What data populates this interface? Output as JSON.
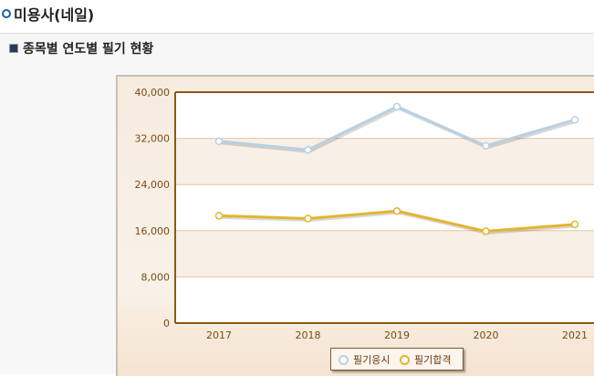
{
  "page": {
    "title": "미용사(네일)"
  },
  "section": {
    "title": "종목별 연도별 필기 현황"
  },
  "chart_data": {
    "type": "line",
    "categories": [
      "2017",
      "2018",
      "2019",
      "2020",
      "2021"
    ],
    "ylim": [
      0,
      40000
    ],
    "yticks": [
      "0",
      "8,000",
      "16,000",
      "24,000",
      "32,000",
      "40,000"
    ],
    "ytick_values": [
      0,
      8000,
      16000,
      24000,
      32000,
      40000
    ],
    "grid": true,
    "legend_position": "bottom",
    "series": [
      {
        "name": "필기응시",
        "values": [
          31500,
          30000,
          37500,
          30700,
          35200
        ],
        "color": "#b8d0e2"
      },
      {
        "name": "필기합격",
        "values": [
          18600,
          18100,
          19400,
          15900,
          17100
        ],
        "color": "#e3b52f"
      }
    ],
    "plot_frame_color": "#8a5a14"
  }
}
